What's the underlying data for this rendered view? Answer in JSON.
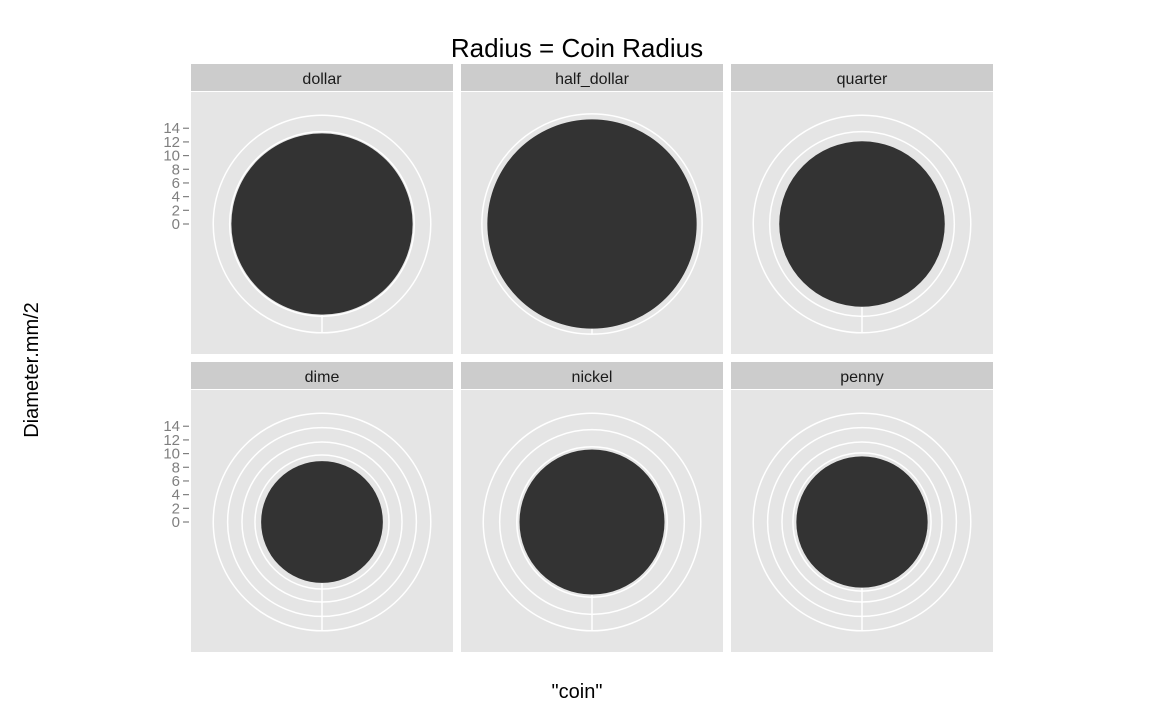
{
  "chart_data": {
    "type": "pie",
    "title": "Radius = Coin Radius",
    "xlabel": "\"coin\"",
    "ylabel": "Diameter.mm/2",
    "y_ticks": [
      0,
      2,
      4,
      6,
      8,
      10,
      12,
      14
    ],
    "ylim": [
      -14,
      16
    ],
    "grid": true,
    "colors": {
      "panel_bg": "#e5e5e5",
      "strip_bg": "#cccccc",
      "grid": "#ffffff",
      "disc": "#333333",
      "tick_text": "#7f7f7f"
    },
    "categories": [
      "dollar",
      "half_dollar",
      "quarter",
      "dime",
      "nickel",
      "penny"
    ],
    "values": [
      13.25,
      15.3,
      12.1,
      8.9,
      10.6,
      9.6
    ],
    "grid_radii": [
      [
        15.9,
        13.5
      ],
      [
        16.1
      ],
      [
        15.9,
        13.5
      ],
      [
        15.9,
        13.8,
        11.7,
        9.8
      ],
      [
        15.9,
        13.5,
        11.0
      ],
      [
        15.9,
        13.8,
        11.7,
        10.1
      ]
    ]
  }
}
